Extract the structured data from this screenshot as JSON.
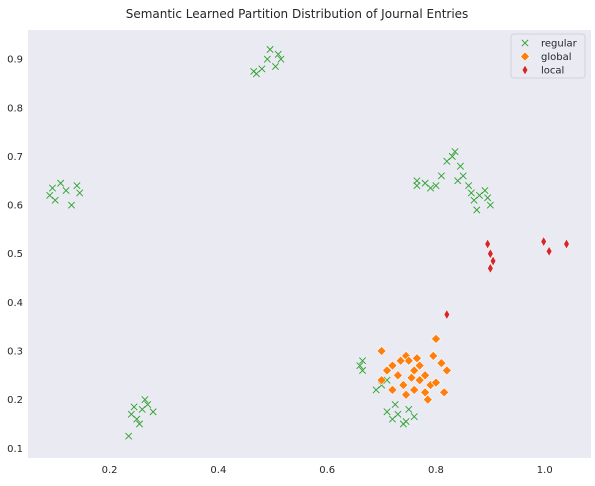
{
  "chart_data": {
    "type": "scatter",
    "title": "Semantic Learned Partition Distribution of Journal Entries",
    "xlabel": "",
    "ylabel": "",
    "xlim": [
      0.05,
      1.085
    ],
    "ylim": [
      0.08,
      0.96
    ],
    "xticks": [
      0.2,
      0.4,
      0.6,
      0.8,
      1.0
    ],
    "xtick_labels": [
      "0.2",
      "0.4",
      "0.6",
      "0.8",
      "1.0"
    ],
    "yticks": [
      0.1,
      0.2,
      0.3,
      0.4,
      0.5,
      0.6,
      0.7,
      0.8,
      0.9
    ],
    "ytick_labels": [
      "0.1",
      "0.2",
      "0.3",
      "0.4",
      "0.5",
      "0.6",
      "0.7",
      "0.8",
      "0.9"
    ],
    "grid": false,
    "background": "#eaeaf2",
    "legend_position": "top-right",
    "series": [
      {
        "name": "regular",
        "marker": "x",
        "color": "#2ca02c",
        "points": [
          [
            0.12,
            0.63
          ],
          [
            0.1,
            0.61
          ],
          [
            0.14,
            0.64
          ],
          [
            0.09,
            0.62
          ],
          [
            0.13,
            0.6
          ],
          [
            0.11,
            0.645
          ],
          [
            0.145,
            0.625
          ],
          [
            0.095,
            0.635
          ],
          [
            0.49,
            0.9
          ],
          [
            0.48,
            0.88
          ],
          [
            0.51,
            0.91
          ],
          [
            0.47,
            0.87
          ],
          [
            0.505,
            0.885
          ],
          [
            0.495,
            0.92
          ],
          [
            0.465,
            0.875
          ],
          [
            0.515,
            0.9
          ],
          [
            0.26,
            0.18
          ],
          [
            0.25,
            0.16
          ],
          [
            0.27,
            0.19
          ],
          [
            0.24,
            0.17
          ],
          [
            0.28,
            0.175
          ],
          [
            0.255,
            0.15
          ],
          [
            0.265,
            0.2
          ],
          [
            0.245,
            0.185
          ],
          [
            0.235,
            0.125
          ],
          [
            0.73,
            0.17
          ],
          [
            0.72,
            0.16
          ],
          [
            0.75,
            0.18
          ],
          [
            0.74,
            0.15
          ],
          [
            0.71,
            0.175
          ],
          [
            0.76,
            0.165
          ],
          [
            0.725,
            0.19
          ],
          [
            0.745,
            0.155
          ],
          [
            0.7,
            0.23
          ],
          [
            0.71,
            0.24
          ],
          [
            0.69,
            0.22
          ],
          [
            0.665,
            0.28
          ],
          [
            0.66,
            0.27
          ],
          [
            0.665,
            0.26
          ],
          [
            0.88,
            0.62
          ],
          [
            0.87,
            0.61
          ],
          [
            0.89,
            0.63
          ],
          [
            0.9,
            0.6
          ],
          [
            0.86,
            0.64
          ],
          [
            0.875,
            0.59
          ],
          [
            0.895,
            0.615
          ],
          [
            0.865,
            0.625
          ],
          [
            0.85,
            0.66
          ],
          [
            0.84,
            0.65
          ],
          [
            0.83,
            0.7
          ],
          [
            0.835,
            0.71
          ],
          [
            0.82,
            0.69
          ],
          [
            0.845,
            0.68
          ],
          [
            0.81,
            0.66
          ],
          [
            0.8,
            0.64
          ],
          [
            0.78,
            0.645
          ],
          [
            0.79,
            0.635
          ],
          [
            0.765,
            0.65
          ],
          [
            0.765,
            0.64
          ]
        ]
      },
      {
        "name": "global",
        "marker": "D",
        "color": "#ff7f0e",
        "points": [
          [
            0.7,
            0.3
          ],
          [
            0.745,
            0.29
          ],
          [
            0.795,
            0.29
          ],
          [
            0.8,
            0.325
          ],
          [
            0.75,
            0.28
          ],
          [
            0.81,
            0.275
          ],
          [
            0.72,
            0.27
          ],
          [
            0.71,
            0.26
          ],
          [
            0.7,
            0.24
          ],
          [
            0.73,
            0.25
          ],
          [
            0.74,
            0.23
          ],
          [
            0.72,
            0.22
          ],
          [
            0.745,
            0.21
          ],
          [
            0.76,
            0.26
          ],
          [
            0.77,
            0.24
          ],
          [
            0.78,
            0.25
          ],
          [
            0.79,
            0.23
          ],
          [
            0.76,
            0.22
          ],
          [
            0.77,
            0.27
          ],
          [
            0.78,
            0.215
          ],
          [
            0.785,
            0.2
          ],
          [
            0.8,
            0.235
          ],
          [
            0.815,
            0.215
          ],
          [
            0.82,
            0.26
          ],
          [
            0.755,
            0.245
          ],
          [
            0.765,
            0.285
          ],
          [
            0.735,
            0.28
          ]
        ]
      },
      {
        "name": "local",
        "marker": "d",
        "color": "#d62728",
        "points": [
          [
            0.82,
            0.375
          ],
          [
            0.895,
            0.52
          ],
          [
            0.9,
            0.5
          ],
          [
            0.905,
            0.485
          ],
          [
            0.9,
            0.47
          ],
          [
            0.998,
            0.525
          ],
          [
            1.008,
            0.505
          ],
          [
            1.04,
            0.52
          ]
        ]
      }
    ]
  }
}
